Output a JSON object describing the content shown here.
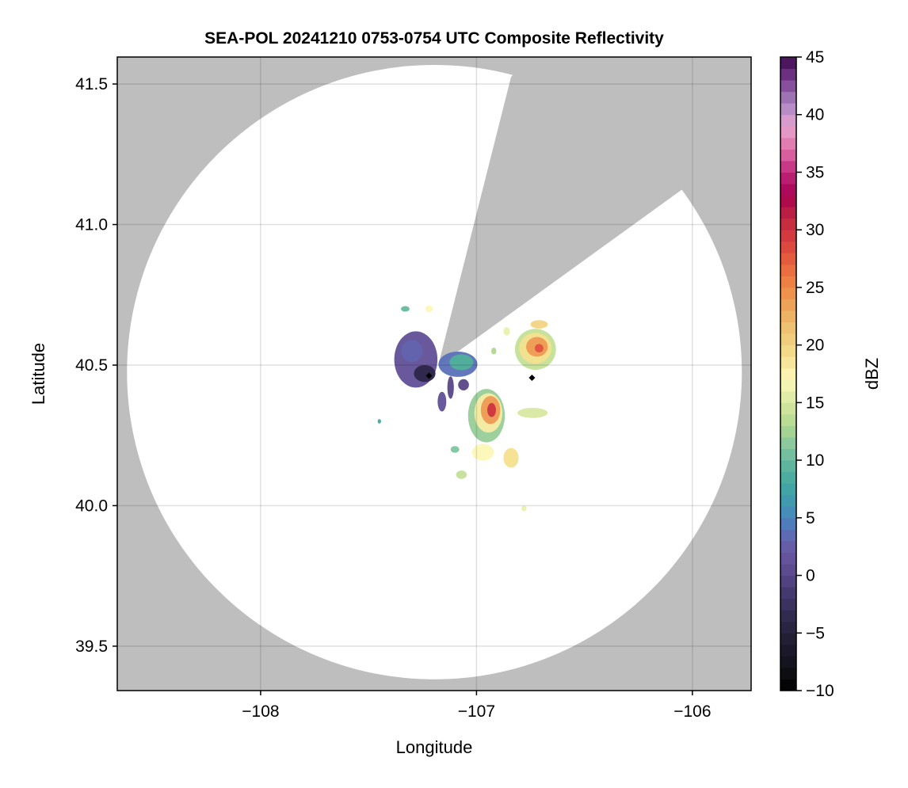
{
  "chart_data": {
    "type": "heatmap",
    "title": "SEA-POL 20241210 0753-0754 UTC Composite Reflectivity",
    "xlabel": "Longitude",
    "ylabel": "Latitude",
    "xlim": [
      -108.664,
      -105.728
    ],
    "ylim": [
      39.342,
      41.596
    ],
    "xticks": [
      -108,
      -107,
      -106
    ],
    "xtick_labels": [
      "−108",
      "−107",
      "−106"
    ],
    "yticks": [
      39.5,
      40.0,
      40.5,
      41.0,
      41.5
    ],
    "ytick_labels": [
      "39.5",
      "40.0",
      "40.5",
      "41.0",
      "41.5"
    ],
    "grid": true,
    "background_color": "#bebebe",
    "coverage": {
      "center": [
        -107.195,
        40.475
      ],
      "radius_deg": [
        1.424,
        1.093
      ],
      "blocked_sector": [
        [
          -107.178,
          40.497
        ],
        [
          -106.84,
          41.525
        ],
        [
          -106.76,
          41.596
        ],
        [
          -105.728,
          41.596
        ],
        [
          -105.728,
          41.123
        ],
        [
          -106.051,
          41.123
        ]
      ]
    },
    "markers": [
      {
        "lon": -106.743,
        "lat": 40.455,
        "color": "#000000"
      },
      {
        "lon": -107.22,
        "lat": 40.462,
        "color": "#000000"
      }
    ],
    "echoes": [
      {
        "lon": -107.281,
        "lat": 40.52,
        "rx": 0.1,
        "ry": 0.1,
        "dbz": 1
      },
      {
        "lon": -107.3,
        "lat": 40.55,
        "rx": 0.05,
        "ry": 0.04,
        "dbz": 3
      },
      {
        "lon": -107.24,
        "lat": 40.47,
        "rx": 0.05,
        "ry": 0.03,
        "dbz": -4
      },
      {
        "lon": -107.086,
        "lat": 40.503,
        "rx": 0.09,
        "ry": 0.045,
        "dbz": 4
      },
      {
        "lon": -107.07,
        "lat": 40.51,
        "rx": 0.055,
        "ry": 0.028,
        "dbz": 9
      },
      {
        "lon": -107.12,
        "lat": 40.42,
        "rx": 0.015,
        "ry": 0.04,
        "dbz": 0
      },
      {
        "lon": -107.16,
        "lat": 40.37,
        "rx": 0.02,
        "ry": 0.035,
        "dbz": 1
      },
      {
        "lon": -107.06,
        "lat": 40.43,
        "rx": 0.025,
        "ry": 0.02,
        "dbz": 0
      },
      {
        "lon": -106.727,
        "lat": 40.556,
        "rx": 0.095,
        "ry": 0.073,
        "dbz": 14
      },
      {
        "lon": -106.727,
        "lat": 40.56,
        "rx": 0.075,
        "ry": 0.055,
        "dbz": 19
      },
      {
        "lon": -106.72,
        "lat": 40.565,
        "rx": 0.05,
        "ry": 0.035,
        "dbz": 24
      },
      {
        "lon": -106.71,
        "lat": 40.56,
        "rx": 0.02,
        "ry": 0.015,
        "dbz": 28
      },
      {
        "lon": -106.71,
        "lat": 40.645,
        "rx": 0.04,
        "ry": 0.015,
        "dbz": 20
      },
      {
        "lon": -106.954,
        "lat": 40.32,
        "rx": 0.085,
        "ry": 0.095,
        "dbz": 12
      },
      {
        "lon": -106.945,
        "lat": 40.33,
        "rx": 0.065,
        "ry": 0.07,
        "dbz": 18
      },
      {
        "lon": -106.935,
        "lat": 40.34,
        "rx": 0.045,
        "ry": 0.05,
        "dbz": 24
      },
      {
        "lon": -106.93,
        "lat": 40.34,
        "rx": 0.02,
        "ry": 0.025,
        "dbz": 30
      },
      {
        "lon": -106.74,
        "lat": 40.33,
        "rx": 0.07,
        "ry": 0.018,
        "dbz": 15
      },
      {
        "lon": -106.97,
        "lat": 40.19,
        "rx": 0.05,
        "ry": 0.03,
        "dbz": 17
      },
      {
        "lon": -106.84,
        "lat": 40.17,
        "rx": 0.035,
        "ry": 0.035,
        "dbz": 19
      },
      {
        "lon": -107.07,
        "lat": 40.11,
        "rx": 0.025,
        "ry": 0.015,
        "dbz": 14
      },
      {
        "lon": -107.1,
        "lat": 40.2,
        "rx": 0.02,
        "ry": 0.012,
        "dbz": 11
      },
      {
        "lon": -107.33,
        "lat": 40.7,
        "rx": 0.02,
        "ry": 0.01,
        "dbz": 10
      },
      {
        "lon": -107.22,
        "lat": 40.7,
        "rx": 0.018,
        "ry": 0.012,
        "dbz": 17
      },
      {
        "lon": -106.92,
        "lat": 40.55,
        "rx": 0.012,
        "ry": 0.012,
        "dbz": 13
      },
      {
        "lon": -106.86,
        "lat": 40.62,
        "rx": 0.015,
        "ry": 0.015,
        "dbz": 16
      },
      {
        "lon": -106.78,
        "lat": 39.99,
        "rx": 0.012,
        "ry": 0.01,
        "dbz": 16
      },
      {
        "lon": -107.45,
        "lat": 40.3,
        "rx": 0.008,
        "ry": 0.008,
        "dbz": 8
      }
    ],
    "colorbar": {
      "label": "dBZ",
      "range": [
        -10,
        45
      ],
      "step": 1,
      "ticks": [
        -10,
        -5,
        0,
        5,
        10,
        15,
        20,
        25,
        30,
        35,
        40,
        45
      ],
      "tick_labels": [
        "−10",
        "−5",
        "0",
        "5",
        "10",
        "15",
        "20",
        "25",
        "30",
        "35",
        "40",
        "45"
      ],
      "color_anchors": [
        [
          -10,
          "#000000"
        ],
        [
          -8,
          "#111118"
        ],
        [
          -5,
          "#25203a"
        ],
        [
          -2,
          "#3f3566"
        ],
        [
          0,
          "#574888"
        ],
        [
          2,
          "#6a56a4"
        ],
        [
          4,
          "#5a70b8"
        ],
        [
          5,
          "#4888c0"
        ],
        [
          7,
          "#3ea0a8"
        ],
        [
          9,
          "#50b09a"
        ],
        [
          11,
          "#80c4a0"
        ],
        [
          13,
          "#b0d890"
        ],
        [
          15,
          "#d8e8a0"
        ],
        [
          17,
          "#fcf8b8"
        ],
        [
          19,
          "#f4e08e"
        ],
        [
          21,
          "#f0c878"
        ],
        [
          23,
          "#ecaa60"
        ],
        [
          25,
          "#ee8a48"
        ],
        [
          27,
          "#e8643c"
        ],
        [
          29,
          "#d84040"
        ],
        [
          31,
          "#c02840"
        ],
        [
          33,
          "#a80050"
        ],
        [
          35,
          "#c0287a"
        ],
        [
          37,
          "#e070a8"
        ],
        [
          39,
          "#e6a4d0"
        ],
        [
          41,
          "#a884c0"
        ],
        [
          43,
          "#7a3e90"
        ],
        [
          45,
          "#3e0a4e"
        ]
      ]
    }
  }
}
